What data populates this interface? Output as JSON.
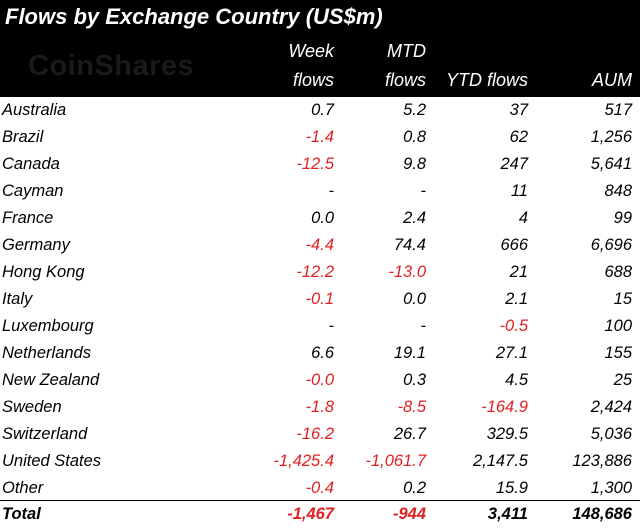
{
  "title": "Flows by Exchange Country (US$m)",
  "logo": "CoinShares",
  "headers": {
    "week_line1": "Week",
    "week_line2": "flows",
    "mtd_line1": "MTD",
    "mtd_line2": "flows",
    "ytd": "YTD flows",
    "aum": "AUM"
  },
  "colors": {
    "header_bg": "#000000",
    "negative": "#e02020"
  },
  "chart_data": {
    "type": "table",
    "title": "Flows by Exchange Country (US$m)",
    "columns": [
      "Week flows",
      "MTD flows",
      "YTD flows",
      "AUM"
    ],
    "rows": [
      {
        "country": "Australia",
        "week": "0.7",
        "mtd": "5.2",
        "ytd": "37",
        "aum": "517"
      },
      {
        "country": "Brazil",
        "week": "-1.4",
        "mtd": "0.8",
        "ytd": "62",
        "aum": "1,256"
      },
      {
        "country": "Canada",
        "week": "-12.5",
        "mtd": "9.8",
        "ytd": "247",
        "aum": "5,641"
      },
      {
        "country": "Cayman",
        "week": "-",
        "mtd": "-",
        "ytd": "11",
        "aum": "848"
      },
      {
        "country": "France",
        "week": "0.0",
        "mtd": "2.4",
        "ytd": "4",
        "aum": "99"
      },
      {
        "country": "Germany",
        "week": "-4.4",
        "mtd": "74.4",
        "ytd": "666",
        "aum": "6,696"
      },
      {
        "country": "Hong Kong",
        "week": "-12.2",
        "mtd": "-13.0",
        "ytd": "21",
        "aum": "688"
      },
      {
        "country": "Italy",
        "week": "-0.1",
        "mtd": "0.0",
        "ytd": "2.1",
        "aum": "15"
      },
      {
        "country": "Luxembourg",
        "week": "-",
        "mtd": "-",
        "ytd": "-0.5",
        "aum": "100"
      },
      {
        "country": "Netherlands",
        "week": "6.6",
        "mtd": "19.1",
        "ytd": "27.1",
        "aum": "155"
      },
      {
        "country": "New Zealand",
        "week": "-0.0",
        "mtd": "0.3",
        "ytd": "4.5",
        "aum": "25"
      },
      {
        "country": "Sweden",
        "week": "-1.8",
        "mtd": "-8.5",
        "ytd": "-164.9",
        "aum": "2,424"
      },
      {
        "country": "Switzerland",
        "week": "-16.2",
        "mtd": "26.7",
        "ytd": "329.5",
        "aum": "5,036"
      },
      {
        "country": "United States",
        "week": "-1,425.4",
        "mtd": "-1,061.7",
        "ytd": "2,147.5",
        "aum": "123,886"
      },
      {
        "country": "Other",
        "week": "-0.4",
        "mtd": "0.2",
        "ytd": "15.9",
        "aum": "1,300"
      }
    ],
    "total": {
      "country": "Total",
      "week": "-1,467",
      "mtd": "-944",
      "ytd": "3,411",
      "aum": "148,686"
    }
  }
}
